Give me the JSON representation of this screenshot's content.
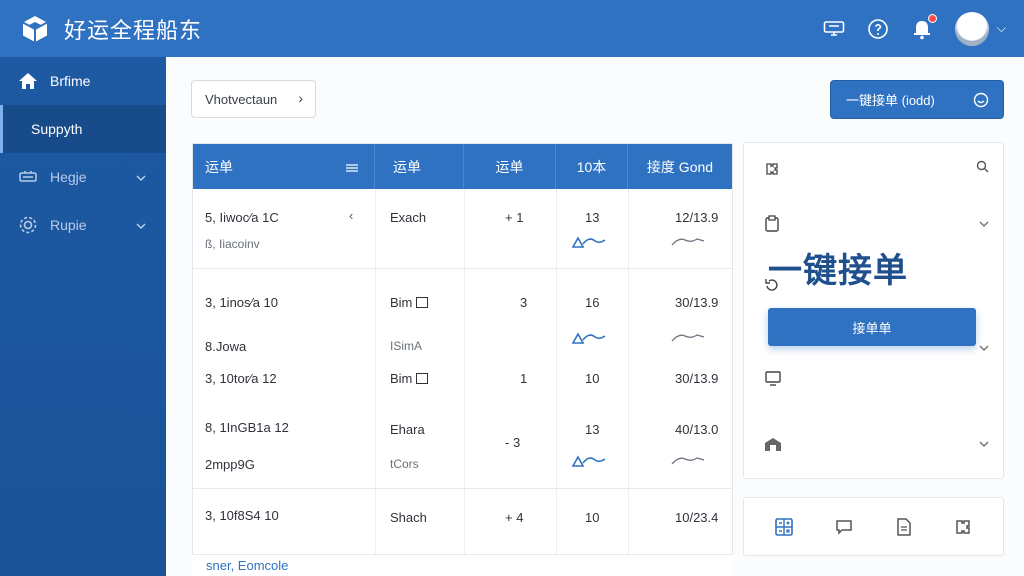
{
  "app": {
    "title": "好运全程船东"
  },
  "header": {
    "icons": [
      "contract-icon",
      "help-icon",
      "notification-bell-icon",
      "avatar"
    ],
    "accent": "#2f72c2"
  },
  "sidebar": {
    "items": [
      {
        "label": "Brfime",
        "icon": "home-icon"
      },
      {
        "label": "Suppyth",
        "icon": "support-icon"
      },
      {
        "label": "Hegje",
        "icon": "ship-icon"
      },
      {
        "label": "Rupie",
        "icon": "settings-icon"
      }
    ]
  },
  "toolbar": {
    "breadcrumb_label": "Vhotvectaun",
    "oneclick_label": "一键接单 (iodd)"
  },
  "table": {
    "headers": [
      "运单",
      "运单",
      "运单",
      "10本",
      "接度 Gond"
    ],
    "rows": [
      {
        "c1": "5, Iiwoc⁄a 1C",
        "c1b": "ß, Iiacoinv",
        "c2": "Exach",
        "c2b": "",
        "c3": "+ 1",
        "c4": "13",
        "c5": "12/13.9"
      },
      {
        "c1": "3, 1inos⁄a 10",
        "c1b": "8.Jowa",
        "c2": "Bim",
        "c2b": "ISimA",
        "c3": "3",
        "c4": "16",
        "c5": "30/13.9"
      },
      {
        "c1": "3, 10tor⁄a 12",
        "c1b": "",
        "c2": "Bim",
        "c2b": "",
        "c3": "1",
        "c4": "10",
        "c5": "30/13.9"
      },
      {
        "c1": "8, 1InGB1a 12",
        "c1b": "2mpp9G",
        "c2": "Ehara",
        "c2b": "tCors",
        "c3": "- 3",
        "c4": "13",
        "c5": "40/13.0"
      },
      {
        "c1": "3, 10f8S4 10",
        "c1b": "",
        "c2": "Shach",
        "c2b": "",
        "c3": "+ 4",
        "c4": "10",
        "c5": "10/23.4"
      }
    ],
    "footer_link": "sner, Eomcole"
  },
  "right_panel": {
    "big_title": "一键接单",
    "accept_label": "接单单",
    "icons": [
      "puzzle-icon",
      "search-icon",
      "clipboard-icon",
      "refresh-icon",
      "monitor-icon",
      "warehouse-icon"
    ]
  },
  "bottom_panel": {
    "icons": [
      "calculator-icon",
      "chat-icon",
      "document-icon",
      "puzzle-icon"
    ]
  }
}
